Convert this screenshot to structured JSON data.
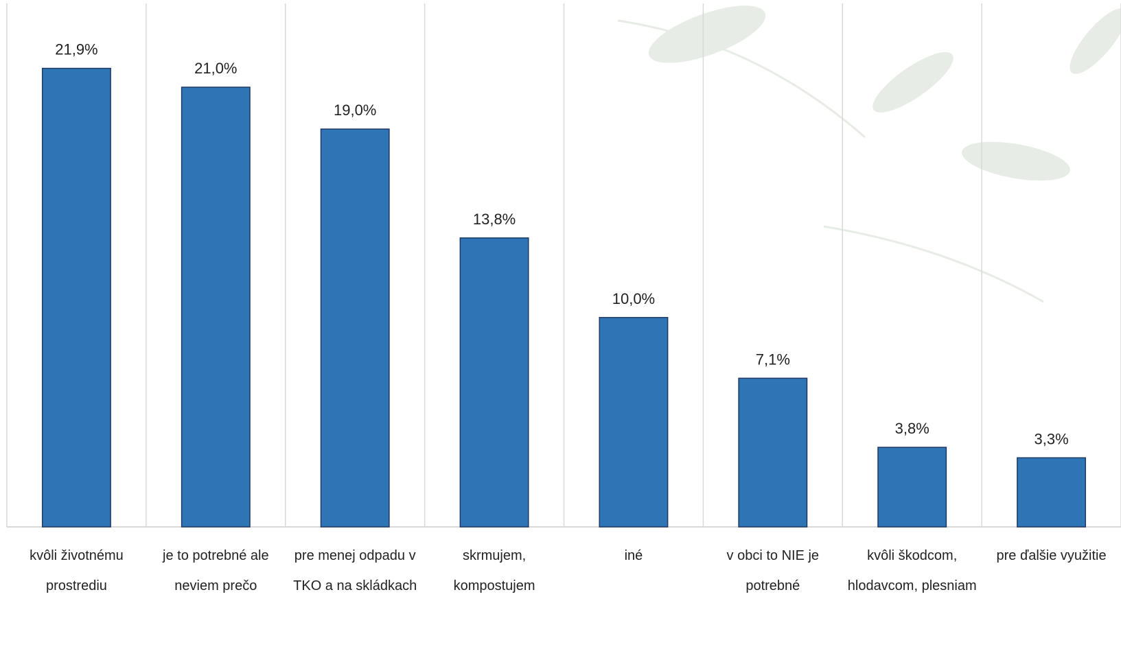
{
  "chart_data": {
    "type": "bar",
    "categories": [
      "kvôli životnému prostrediu",
      "je to potrebné ale neviem prečo",
      "pre menej odpadu v TKO a na skládkach",
      "skrmujem, kompostujem",
      "iné",
      "v obci to NIE je potrebné",
      "kvôli škodcom, hlodavcom, plesniam",
      "pre ďalšie využitie"
    ],
    "values": [
      21.9,
      21.0,
      19.0,
      13.8,
      10.0,
      7.1,
      3.8,
      3.3
    ],
    "value_labels": [
      "21,9%",
      "21,0%",
      "19,0%",
      "13,8%",
      "10,0%",
      "7,1%",
      "3,8%",
      "3,3%"
    ],
    "color": "#2e75b6",
    "ylim": [
      0,
      25
    ]
  }
}
